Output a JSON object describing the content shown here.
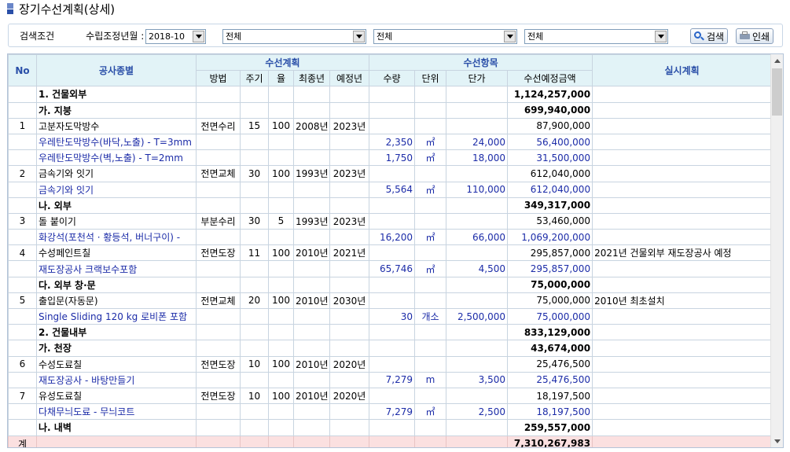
{
  "page": {
    "title": "장기수선계획(상세)"
  },
  "search": {
    "label": "검색조건",
    "year_label": "수립조정년월 :",
    "year_value": "2018-10",
    "filter1": "전체",
    "filter2": "전체",
    "filter3": "전체",
    "search_button": "검색",
    "print_button": "인쇄"
  },
  "table": {
    "headers": {
      "no": "No",
      "type": "공사종별",
      "plan_group": "수선계획",
      "item_group": "수선항목",
      "actual": "실시계획",
      "method": "방법",
      "cycle": "주기",
      "rate": "율",
      "last_year": "최종년",
      "planned_year": "예정년",
      "qty": "수량",
      "unit": "단위",
      "unit_price": "단가",
      "amount": "수선예정금액"
    },
    "rows": [
      {
        "no": "",
        "name": "1. 건물외부",
        "method": "",
        "cycle": "",
        "rate": "",
        "last": "",
        "plan": "",
        "qty": "",
        "unit": "",
        "price": "",
        "amount": "1,124,257,000",
        "actual": "",
        "kind": "cat"
      },
      {
        "no": "",
        "name": "가. 지붕",
        "method": "",
        "cycle": "",
        "rate": "",
        "last": "",
        "plan": "",
        "qty": "",
        "unit": "",
        "price": "",
        "amount": "699,940,000",
        "actual": "",
        "kind": "cat"
      },
      {
        "no": "1",
        "name": "고분자도막방수",
        "method": "전면수리",
        "cycle": "15",
        "rate": "100",
        "last": "2008년",
        "plan": "2023년",
        "qty": "",
        "unit": "",
        "price": "",
        "amount": "87,900,000",
        "actual": "",
        "kind": "item"
      },
      {
        "no": "",
        "name": "우레탄도막방수(바닥,노출) - T=3mm",
        "method": "",
        "cycle": "",
        "rate": "",
        "last": "",
        "plan": "",
        "qty": "2,350",
        "unit": "㎡",
        "price": "24,000",
        "amount": "56,400,000",
        "actual": "",
        "kind": "detail"
      },
      {
        "no": "",
        "name": "우레탄도막방수(벽,노출) - T=2mm",
        "method": "",
        "cycle": "",
        "rate": "",
        "last": "",
        "plan": "",
        "qty": "1,750",
        "unit": "㎡",
        "price": "18,000",
        "amount": "31,500,000",
        "actual": "",
        "kind": "detail"
      },
      {
        "no": "2",
        "name": "금속기와 잇기",
        "method": "전면교체",
        "cycle": "30",
        "rate": "100",
        "last": "1993년",
        "plan": "2023년",
        "qty": "",
        "unit": "",
        "price": "",
        "amount": "612,040,000",
        "actual": "",
        "kind": "item"
      },
      {
        "no": "",
        "name": "금속기와 잇기",
        "method": "",
        "cycle": "",
        "rate": "",
        "last": "",
        "plan": "",
        "qty": "5,564",
        "unit": "㎡",
        "price": "110,000",
        "amount": "612,040,000",
        "actual": "",
        "kind": "detail"
      },
      {
        "no": "",
        "name": "나. 외부",
        "method": "",
        "cycle": "",
        "rate": "",
        "last": "",
        "plan": "",
        "qty": "",
        "unit": "",
        "price": "",
        "amount": "349,317,000",
        "actual": "",
        "kind": "cat"
      },
      {
        "no": "3",
        "name": "돌 붙이기",
        "method": "부분수리",
        "cycle": "30",
        "rate": "5",
        "last": "1993년",
        "plan": "2023년",
        "qty": "",
        "unit": "",
        "price": "",
        "amount": "53,460,000",
        "actual": "",
        "kind": "item"
      },
      {
        "no": "",
        "name": "화강석(포천석 · 황등석, 버너구이) -",
        "method": "",
        "cycle": "",
        "rate": "",
        "last": "",
        "plan": "",
        "qty": "16,200",
        "unit": "㎡",
        "price": "66,000",
        "amount": "1,069,200,000",
        "actual": "",
        "kind": "detail"
      },
      {
        "no": "4",
        "name": "수성페인트칠",
        "method": "전면도장",
        "cycle": "11",
        "rate": "100",
        "last": "2010년",
        "plan": "2021년",
        "qty": "",
        "unit": "",
        "price": "",
        "amount": "295,857,000",
        "actual": "2021년 건물외부 재도장공사 예정",
        "kind": "item"
      },
      {
        "no": "",
        "name": "재도장공사 크랙보수포함",
        "method": "",
        "cycle": "",
        "rate": "",
        "last": "",
        "plan": "",
        "qty": "65,746",
        "unit": "㎡",
        "price": "4,500",
        "amount": "295,857,000",
        "actual": "",
        "kind": "detail"
      },
      {
        "no": "",
        "name": "다. 외부 창·문",
        "method": "",
        "cycle": "",
        "rate": "",
        "last": "",
        "plan": "",
        "qty": "",
        "unit": "",
        "price": "",
        "amount": "75,000,000",
        "actual": "",
        "kind": "cat"
      },
      {
        "no": "5",
        "name": "출입문(자동문)",
        "method": "전면교체",
        "cycle": "20",
        "rate": "100",
        "last": "2010년",
        "plan": "2030년",
        "qty": "",
        "unit": "",
        "price": "",
        "amount": "75,000,000",
        "actual": "2010년 최초설치",
        "kind": "item"
      },
      {
        "no": "",
        "name": "Single Sliding 120 kg 로비폰 포함",
        "method": "",
        "cycle": "",
        "rate": "",
        "last": "",
        "plan": "",
        "qty": "30",
        "unit": "개소",
        "price": "2,500,000",
        "amount": "75,000,000",
        "actual": "",
        "kind": "detail"
      },
      {
        "no": "",
        "name": "2. 건물내부",
        "method": "",
        "cycle": "",
        "rate": "",
        "last": "",
        "plan": "",
        "qty": "",
        "unit": "",
        "price": "",
        "amount": "833,129,000",
        "actual": "",
        "kind": "cat"
      },
      {
        "no": "",
        "name": "가. 천장",
        "method": "",
        "cycle": "",
        "rate": "",
        "last": "",
        "plan": "",
        "qty": "",
        "unit": "",
        "price": "",
        "amount": "43,674,000",
        "actual": "",
        "kind": "cat"
      },
      {
        "no": "6",
        "name": "수성도료칠",
        "method": "전면도장",
        "cycle": "10",
        "rate": "100",
        "last": "2010년",
        "plan": "2020년",
        "qty": "",
        "unit": "",
        "price": "",
        "amount": "25,476,500",
        "actual": "",
        "kind": "item"
      },
      {
        "no": "",
        "name": "재도장공사 - 바탕만들기",
        "method": "",
        "cycle": "",
        "rate": "",
        "last": "",
        "plan": "",
        "qty": "7,279",
        "unit": "m",
        "price": "3,500",
        "amount": "25,476,500",
        "actual": "",
        "kind": "detail"
      },
      {
        "no": "7",
        "name": "유성도료칠",
        "method": "전면도장",
        "cycle": "10",
        "rate": "100",
        "last": "2010년",
        "plan": "2020년",
        "qty": "",
        "unit": "",
        "price": "",
        "amount": "18,197,500",
        "actual": "",
        "kind": "item"
      },
      {
        "no": "",
        "name": "다채무늬도료 - 무늬코트",
        "method": "",
        "cycle": "",
        "rate": "",
        "last": "",
        "plan": "",
        "qty": "7,279",
        "unit": "㎡",
        "price": "2,500",
        "amount": "18,197,500",
        "actual": "",
        "kind": "detail"
      },
      {
        "no": "",
        "name": "나. 내벽",
        "method": "",
        "cycle": "",
        "rate": "",
        "last": "",
        "plan": "",
        "qty": "",
        "unit": "",
        "price": "",
        "amount": "259,557,000",
        "actual": "",
        "kind": "cat"
      }
    ],
    "total": {
      "label": "계",
      "amount": "7,310,267,983"
    }
  }
}
